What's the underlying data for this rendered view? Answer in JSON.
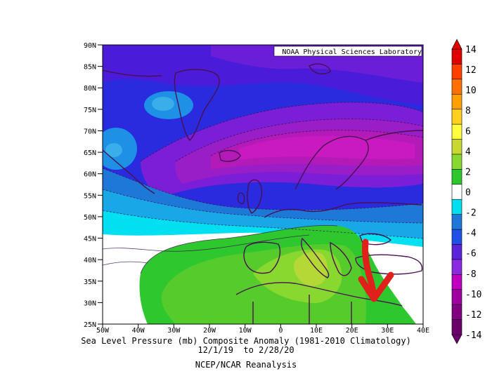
{
  "map": {
    "credit": "NOAA Physical Sciences Laboratory",
    "lat_labels": [
      "90N",
      "85N",
      "80N",
      "75N",
      "70N",
      "65N",
      "60N",
      "55N",
      "50N",
      "45N",
      "40N",
      "35N",
      "30N",
      "25N"
    ],
    "lon_labels": [
      "50W",
      "40W",
      "30W",
      "20W",
      "10W",
      "0",
      "10E",
      "20E",
      "30E",
      "40E"
    ],
    "caption_line1": "Sea Level Pressure (mb) Composite Anomaly (1981-2010 Climatology)",
    "caption_line2": "12/1/19  to 2/28/20",
    "caption_line3": "NCEP/NCAR Reanalysis"
  },
  "colorbar": {
    "labels": [
      "14",
      "12",
      "10",
      "8",
      "6",
      "4",
      "2",
      "0",
      "-2",
      "-4",
      "-6",
      "-8",
      "-10",
      "-12",
      "-14"
    ],
    "colors": [
      "#6a006a",
      "#800080",
      "#a000a0",
      "#c000c0",
      "#8a2be2",
      "#5a24d8",
      "#2050e6",
      "#1e78d8",
      "#00e0f0",
      "#ffffff",
      "#2ec82e",
      "#88d830",
      "#c8d830",
      "#ffff40",
      "#ffd020",
      "#ffa000",
      "#ff7000",
      "#ff4000",
      "#e00000"
    ]
  },
  "annotation": {
    "arrow_color": "#e0201a"
  }
}
